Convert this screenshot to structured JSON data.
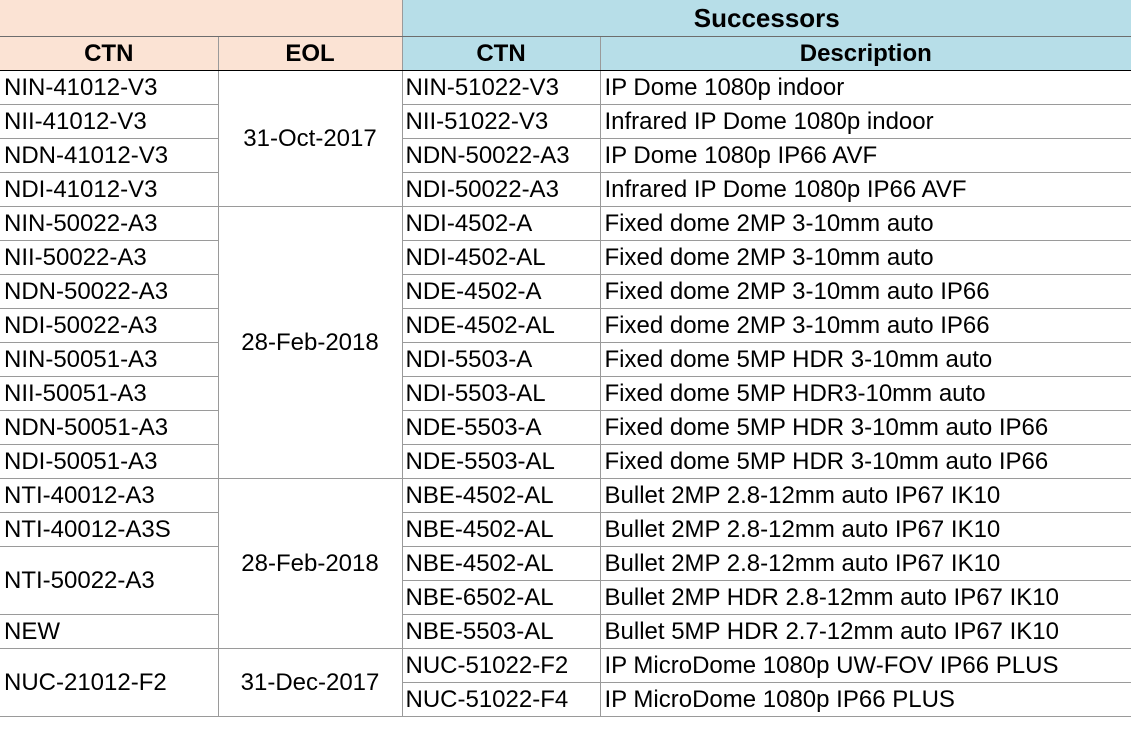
{
  "header": {
    "group_title": "Successors",
    "col_ctn": "CTN",
    "col_eol": "EOL",
    "col_succ_ctn": "CTN",
    "col_desc": "Description"
  },
  "eol_dates": [
    "31-Oct-2017",
    "28-Feb-2018",
    "28-Feb-2018",
    "31-Dec-2017"
  ],
  "ctn": [
    "NIN-41012-V3",
    "NII-41012-V3",
    "NDN-41012-V3",
    "NDI-41012-V3",
    "NIN-50022-A3",
    "NII-50022-A3",
    "NDN-50022-A3",
    "NDI-50022-A3",
    "NIN-50051-A3",
    "NII-50051-A3",
    "NDN-50051-A3",
    "NDI-50051-A3",
    "NTI-40012-A3",
    "NTI-40012-A3S",
    "NTI-50022-A3",
    "NEW",
    "NUC-21012-F2"
  ],
  "rows": [
    {
      "succ": "NIN-51022-V3",
      "desc": "IP Dome 1080p indoor"
    },
    {
      "succ": "NII-51022-V3",
      "desc": "Infrared IP Dome 1080p indoor"
    },
    {
      "succ": "NDN-50022-A3",
      "desc": "IP Dome 1080p IP66 AVF"
    },
    {
      "succ": "NDI-50022-A3",
      "desc": "Infrared IP Dome 1080p IP66 AVF"
    },
    {
      "succ": "NDI-4502-A",
      "desc": "Fixed dome 2MP 3-10mm auto"
    },
    {
      "succ": "NDI-4502-AL",
      "desc": "Fixed dome 2MP 3-10mm auto"
    },
    {
      "succ": "NDE-4502-A",
      "desc": "Fixed dome 2MP 3-10mm auto IP66"
    },
    {
      "succ": "NDE-4502-AL",
      "desc": "Fixed dome 2MP 3-10mm auto IP66"
    },
    {
      "succ": "NDI-5503-A",
      "desc": "Fixed dome 5MP HDR 3-10mm auto"
    },
    {
      "succ": "NDI-5503-AL",
      "desc": "Fixed dome 5MP HDR3-10mm auto"
    },
    {
      "succ": "NDE-5503-A",
      "desc": "Fixed dome 5MP HDR 3-10mm auto IP66"
    },
    {
      "succ": "NDE-5503-AL",
      "desc": "Fixed dome 5MP HDR 3-10mm auto IP66"
    },
    {
      "succ": "NBE-4502-AL",
      "desc": "Bullet 2MP 2.8-12mm auto IP67 IK10"
    },
    {
      "succ": "NBE-4502-AL",
      "desc": "Bullet 2MP 2.8-12mm auto IP67 IK10"
    },
    {
      "succ": "NBE-4502-AL",
      "desc": "Bullet 2MP 2.8-12mm auto IP67 IK10"
    },
    {
      "succ": "NBE-6502-AL",
      "desc": "Bullet 2MP HDR 2.8-12mm auto IP67 IK10"
    },
    {
      "succ": "NBE-5503-AL",
      "desc": "Bullet 5MP HDR 2.7-12mm auto IP67 IK10"
    },
    {
      "succ": "NUC-51022-F2",
      "desc": "IP MicroDome 1080p UW-FOV IP66 PLUS"
    },
    {
      "succ": "NUC-51022-F4",
      "desc": "IP MicroDome 1080p IP66 PLUS"
    }
  ]
}
